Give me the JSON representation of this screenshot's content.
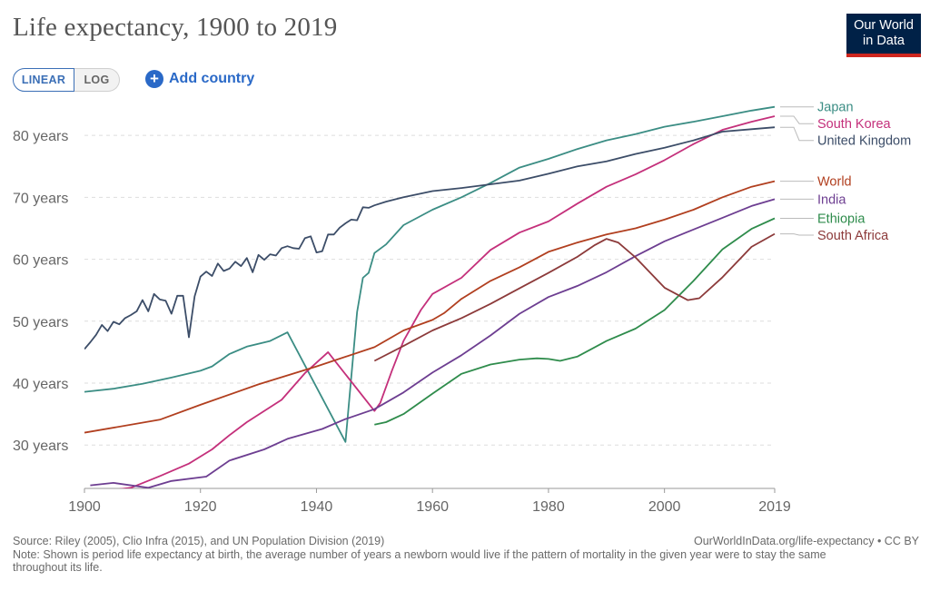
{
  "header": {
    "title": "Life expectancy, 1900 to 2019",
    "logo_line1": "Our World",
    "logo_line2": "in Data"
  },
  "controls": {
    "linear_label": "LINEAR",
    "log_label": "LOG",
    "add_country_label": "Add country",
    "scale_selected": "linear"
  },
  "footer": {
    "source": "Source: Riley (2005), Clio Infra (2015), and UN Population Division (2019)",
    "note": "Note: Shown is period life expectancy at birth, the average number of years a newborn would live if the pattern of mortality in the given year were to stay the same throughout its life.",
    "url": "OurWorldInData.org/life-expectancy • CC BY"
  },
  "chart_data": {
    "type": "line",
    "title": "Life expectancy, 1900 to 2019",
    "xlim": [
      1900,
      2019
    ],
    "ylim": [
      23,
      85
    ],
    "x_ticks": [
      1900,
      1920,
      1940,
      1960,
      1980,
      2000,
      2019
    ],
    "y_ticks": [
      {
        "value": 30,
        "label": "30 years"
      },
      {
        "value": 40,
        "label": "40 years"
      },
      {
        "value": 50,
        "label": "50 years"
      },
      {
        "value": 60,
        "label": "60 years"
      },
      {
        "value": 70,
        "label": "70 years"
      },
      {
        "value": 80,
        "label": "80 years"
      }
    ],
    "grid": "horizontal-dashed",
    "legend": "right-end-labels",
    "series": [
      {
        "name": "Japan",
        "color": "#3b8d84",
        "points": [
          [
            1900,
            38.6
          ],
          [
            1905,
            39.1
          ],
          [
            1910,
            39.9
          ],
          [
            1915,
            40.9
          ],
          [
            1920,
            42.0
          ],
          [
            1922,
            42.7
          ],
          [
            1925,
            44.7
          ],
          [
            1928,
            45.9
          ],
          [
            1932,
            46.8
          ],
          [
            1935,
            48.2
          ],
          [
            1945,
            30.5
          ],
          [
            1947,
            51.5
          ],
          [
            1948,
            57.0
          ],
          [
            1949,
            57.8
          ],
          [
            1950,
            61.0
          ],
          [
            1952,
            62.4
          ],
          [
            1955,
            65.5
          ],
          [
            1960,
            68.0
          ],
          [
            1965,
            70.0
          ],
          [
            1970,
            72.3
          ],
          [
            1975,
            74.8
          ],
          [
            1980,
            76.2
          ],
          [
            1985,
            77.8
          ],
          [
            1990,
            79.2
          ],
          [
            1995,
            80.2
          ],
          [
            2000,
            81.4
          ],
          [
            2005,
            82.2
          ],
          [
            2010,
            83.1
          ],
          [
            2015,
            84.0
          ],
          [
            2019,
            84.6
          ]
        ]
      },
      {
        "name": "South Korea",
        "color": "#c4307b",
        "points": [
          [
            1900,
            22.2
          ],
          [
            1908,
            23.1
          ],
          [
            1913,
            25.0
          ],
          [
            1918,
            27.0
          ],
          [
            1922,
            29.3
          ],
          [
            1925,
            31.6
          ],
          [
            1928,
            33.7
          ],
          [
            1934,
            37.3
          ],
          [
            1938,
            41.6
          ],
          [
            1942,
            45.0
          ],
          [
            1950,
            35.5
          ],
          [
            1951,
            36.8
          ],
          [
            1953,
            42.0
          ],
          [
            1955,
            46.8
          ],
          [
            1958,
            51.8
          ],
          [
            1960,
            54.4
          ],
          [
            1965,
            57.0
          ],
          [
            1970,
            61.5
          ],
          [
            1975,
            64.3
          ],
          [
            1980,
            66.1
          ],
          [
            1985,
            69.0
          ],
          [
            1990,
            71.7
          ],
          [
            1995,
            73.7
          ],
          [
            2000,
            76.0
          ],
          [
            2005,
            78.6
          ],
          [
            2010,
            80.9
          ],
          [
            2015,
            82.2
          ],
          [
            2019,
            83.1
          ]
        ]
      },
      {
        "name": "United Kingdom",
        "color": "#3c4d68",
        "points": [
          [
            1900,
            45.5
          ],
          [
            1901,
            46.6
          ],
          [
            1902,
            47.8
          ],
          [
            1903,
            49.4
          ],
          [
            1904,
            48.4
          ],
          [
            1905,
            49.9
          ],
          [
            1906,
            49.5
          ],
          [
            1907,
            50.5
          ],
          [
            1908,
            51.0
          ],
          [
            1909,
            51.6
          ],
          [
            1910,
            53.4
          ],
          [
            1911,
            51.6
          ],
          [
            1912,
            54.4
          ],
          [
            1913,
            53.5
          ],
          [
            1914,
            53.3
          ],
          [
            1915,
            51.2
          ],
          [
            1916,
            54.1
          ],
          [
            1917,
            54.1
          ],
          [
            1918,
            47.4
          ],
          [
            1919,
            54.0
          ],
          [
            1920,
            57.2
          ],
          [
            1921,
            58.0
          ],
          [
            1922,
            57.3
          ],
          [
            1923,
            59.3
          ],
          [
            1924,
            58.1
          ],
          [
            1925,
            58.5
          ],
          [
            1926,
            59.6
          ],
          [
            1927,
            58.9
          ],
          [
            1928,
            60.2
          ],
          [
            1929,
            57.9
          ],
          [
            1930,
            60.7
          ],
          [
            1931,
            59.9
          ],
          [
            1932,
            60.8
          ],
          [
            1933,
            60.6
          ],
          [
            1934,
            61.8
          ],
          [
            1935,
            62.1
          ],
          [
            1936,
            61.8
          ],
          [
            1937,
            61.7
          ],
          [
            1938,
            63.4
          ],
          [
            1939,
            63.7
          ],
          [
            1940,
            61.1
          ],
          [
            1941,
            61.3
          ],
          [
            1942,
            64.0
          ],
          [
            1943,
            64.0
          ],
          [
            1944,
            65.1
          ],
          [
            1945,
            65.8
          ],
          [
            1946,
            66.4
          ],
          [
            1947,
            66.3
          ],
          [
            1948,
            68.4
          ],
          [
            1949,
            68.3
          ],
          [
            1950,
            68.7
          ],
          [
            1952,
            69.3
          ],
          [
            1955,
            70.0
          ],
          [
            1960,
            71.0
          ],
          [
            1965,
            71.5
          ],
          [
            1970,
            72.1
          ],
          [
            1975,
            72.7
          ],
          [
            1980,
            73.8
          ],
          [
            1985,
            75.0
          ],
          [
            1990,
            75.8
          ],
          [
            1995,
            77.0
          ],
          [
            2000,
            78.0
          ],
          [
            2005,
            79.2
          ],
          [
            2010,
            80.6
          ],
          [
            2015,
            81.0
          ],
          [
            2019,
            81.3
          ]
        ]
      },
      {
        "name": "World",
        "color": "#b13f1f",
        "points": [
          [
            1900,
            32.0
          ],
          [
            1913,
            34.1
          ],
          [
            1920,
            36.5
          ],
          [
            1930,
            39.8
          ],
          [
            1940,
            42.7
          ],
          [
            1950,
            45.8
          ],
          [
            1955,
            48.5
          ],
          [
            1960,
            50.2
          ],
          [
            1962,
            51.3
          ],
          [
            1965,
            53.6
          ],
          [
            1970,
            56.5
          ],
          [
            1975,
            58.7
          ],
          [
            1980,
            61.2
          ],
          [
            1985,
            62.7
          ],
          [
            1990,
            64.0
          ],
          [
            1995,
            65.0
          ],
          [
            2000,
            66.4
          ],
          [
            2005,
            68.0
          ],
          [
            2010,
            70.0
          ],
          [
            2015,
            71.7
          ],
          [
            2019,
            72.6
          ]
        ]
      },
      {
        "name": "India",
        "color": "#6d3e91",
        "points": [
          [
            1901,
            23.5
          ],
          [
            1905,
            23.9
          ],
          [
            1911,
            23.1
          ],
          [
            1915,
            24.2
          ],
          [
            1921,
            24.9
          ],
          [
            1925,
            27.5
          ],
          [
            1931,
            29.3
          ],
          [
            1935,
            31.0
          ],
          [
            1941,
            32.6
          ],
          [
            1945,
            34.2
          ],
          [
            1950,
            35.8
          ],
          [
            1955,
            38.5
          ],
          [
            1960,
            41.7
          ],
          [
            1965,
            44.5
          ],
          [
            1970,
            47.7
          ],
          [
            1975,
            51.2
          ],
          [
            1980,
            53.9
          ],
          [
            1985,
            55.7
          ],
          [
            1990,
            57.9
          ],
          [
            1995,
            60.5
          ],
          [
            2000,
            62.9
          ],
          [
            2005,
            64.8
          ],
          [
            2010,
            66.7
          ],
          [
            2015,
            68.6
          ],
          [
            2019,
            69.7
          ]
        ]
      },
      {
        "name": "Ethiopia",
        "color": "#2f8c4c",
        "points": [
          [
            1950,
            33.3
          ],
          [
            1952,
            33.7
          ],
          [
            1955,
            35.0
          ],
          [
            1960,
            38.3
          ],
          [
            1965,
            41.5
          ],
          [
            1970,
            43.0
          ],
          [
            1975,
            43.8
          ],
          [
            1978,
            44.0
          ],
          [
            1980,
            43.9
          ],
          [
            1982,
            43.6
          ],
          [
            1985,
            44.3
          ],
          [
            1990,
            46.8
          ],
          [
            1995,
            48.8
          ],
          [
            2000,
            51.8
          ],
          [
            2005,
            56.5
          ],
          [
            2010,
            61.6
          ],
          [
            2015,
            64.9
          ],
          [
            2019,
            66.6
          ]
        ]
      },
      {
        "name": "South Africa",
        "color": "#8c3a3a",
        "points": [
          [
            1950,
            43.6
          ],
          [
            1955,
            46.0
          ],
          [
            1960,
            48.5
          ],
          [
            1965,
            50.5
          ],
          [
            1970,
            52.8
          ],
          [
            1975,
            55.3
          ],
          [
            1980,
            57.8
          ],
          [
            1985,
            60.4
          ],
          [
            1988,
            62.3
          ],
          [
            1990,
            63.3
          ],
          [
            1992,
            62.7
          ],
          [
            1995,
            60.3
          ],
          [
            2000,
            55.4
          ],
          [
            2004,
            53.4
          ],
          [
            2006,
            53.7
          ],
          [
            2010,
            57.1
          ],
          [
            2015,
            62.0
          ],
          [
            2019,
            64.1
          ]
        ]
      }
    ]
  }
}
